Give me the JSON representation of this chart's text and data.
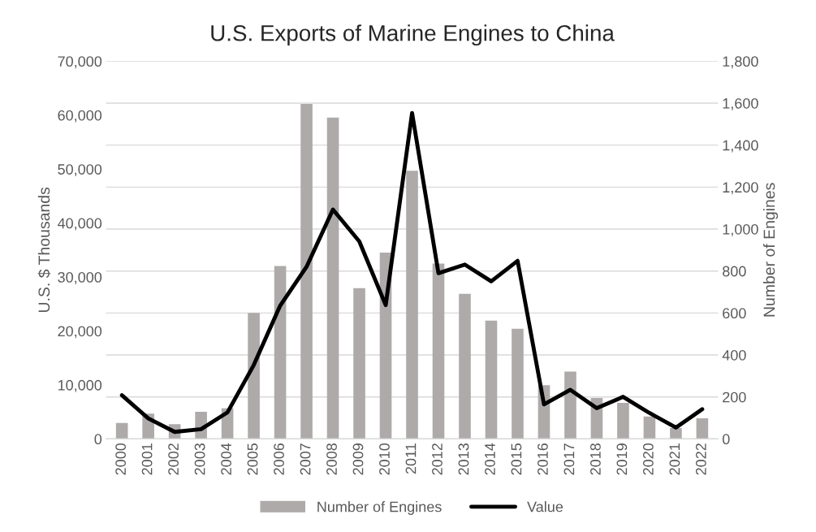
{
  "chart_data": {
    "type": "bar",
    "title": "U.S. Exports of Marine Engines to China",
    "ylabel": "U.S. $ Thousands",
    "y2label": "Number of Engines",
    "categories": [
      "2000",
      "2001",
      "2002",
      "2003",
      "2004",
      "2005",
      "2006",
      "2007",
      "2008",
      "2009",
      "2010",
      "2011",
      "2012",
      "2013",
      "2014",
      "2015",
      "2016",
      "2017",
      "2018",
      "2019",
      "2020",
      "2021",
      "2022"
    ],
    "series": [
      {
        "name": "Number of Engines",
        "axis": "y2",
        "color": "#aeaaaa",
        "values": [
          76,
          120,
          70,
          129,
          146,
          600,
          824,
          1596,
          1531,
          718,
          888,
          1278,
          836,
          691,
          564,
          525,
          256,
          321,
          195,
          172,
          107,
          52,
          98
        ]
      },
      {
        "name": "Value",
        "type": "line",
        "color": "#000000",
        "values": [
          8100,
          3800,
          1300,
          1800,
          4900,
          13700,
          24700,
          31900,
          42500,
          36600,
          24800,
          60400,
          30700,
          32300,
          29200,
          33000,
          6400,
          9100,
          5700,
          7800,
          4800,
          2100,
          5500
        ]
      }
    ],
    "ylim": [
      0,
      70000
    ],
    "yticks": [
      {
        "value": 0,
        "label": "0"
      },
      {
        "value": 10000,
        "label": "10,000"
      },
      {
        "value": 20000,
        "label": "20,000"
      },
      {
        "value": 30000,
        "label": "30,000"
      },
      {
        "value": 40000,
        "label": "40,000"
      },
      {
        "value": 50000,
        "label": "50,000"
      },
      {
        "value": 60000,
        "label": "60,000"
      },
      {
        "value": 70000,
        "label": "70,000"
      }
    ],
    "y2lim": [
      0,
      1800
    ],
    "y2ticks": [
      {
        "value": 0,
        "label": "0"
      },
      {
        "value": 200,
        "label": "200"
      },
      {
        "value": 400,
        "label": "400"
      },
      {
        "value": 600,
        "label": "600"
      },
      {
        "value": 800,
        "label": "800"
      },
      {
        "value": 1000,
        "label": "1,000"
      },
      {
        "value": 1200,
        "label": "1,200"
      },
      {
        "value": 1400,
        "label": "1,400"
      },
      {
        "value": 1600,
        "label": "1,600"
      },
      {
        "value": 1800,
        "label": "1,800"
      }
    ],
    "grid": "y",
    "legend": "bottom",
    "line_style": "solid",
    "marker": "none"
  }
}
